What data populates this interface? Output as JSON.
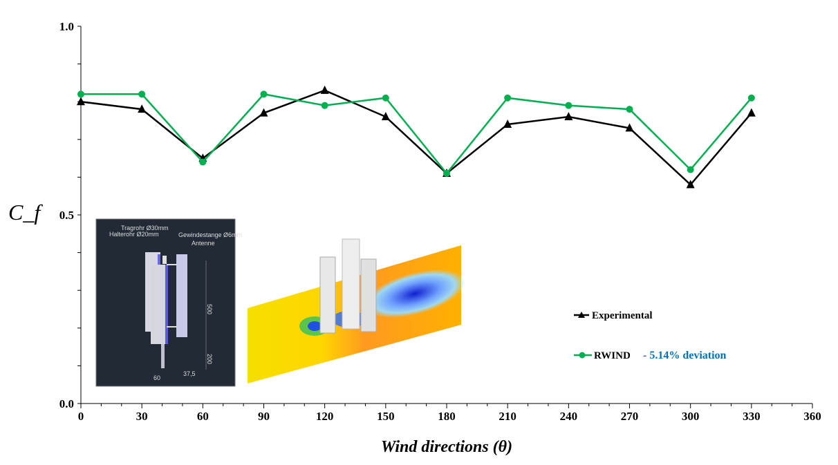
{
  "chart_data": {
    "type": "line",
    "xlabel": "Wind directions (θ)",
    "ylabel": "C_f",
    "xlim": [
      0,
      360
    ],
    "ylim": [
      0,
      1
    ],
    "x_ticks": [
      "0",
      "30",
      "60",
      "90",
      "120",
      "150",
      "180",
      "210",
      "240",
      "270",
      "300",
      "330",
      "360"
    ],
    "y_ticks": [
      "0.0",
      "0.5",
      "1.0"
    ],
    "grid": false,
    "legend_position": "right",
    "x": [
      0,
      30,
      60,
      90,
      120,
      150,
      180,
      210,
      240,
      270,
      300,
      330
    ],
    "series": [
      {
        "name": "Experimental",
        "color": "#000000",
        "marker": "triangle",
        "values": [
          0.8,
          0.78,
          0.65,
          0.77,
          0.83,
          0.76,
          0.61,
          0.74,
          0.76,
          0.73,
          0.58,
          0.77
        ]
      },
      {
        "name": "RWIND",
        "color": "#00B050",
        "marker": "circle",
        "values": [
          0.82,
          0.82,
          0.64,
          0.82,
          0.79,
          0.81,
          0.61,
          0.81,
          0.79,
          0.78,
          0.62,
          0.81
        ]
      }
    ],
    "annotation": "- 5.14% deviation",
    "annotation_color": "#0070C0"
  },
  "inset_cad": {
    "labels": [
      "Tragrohr Ø30mm",
      "Halterohr Ø20mm",
      "Gewindestange Ø6mm",
      "Antenne",
      "500",
      "200",
      "37,5",
      "60"
    ]
  }
}
